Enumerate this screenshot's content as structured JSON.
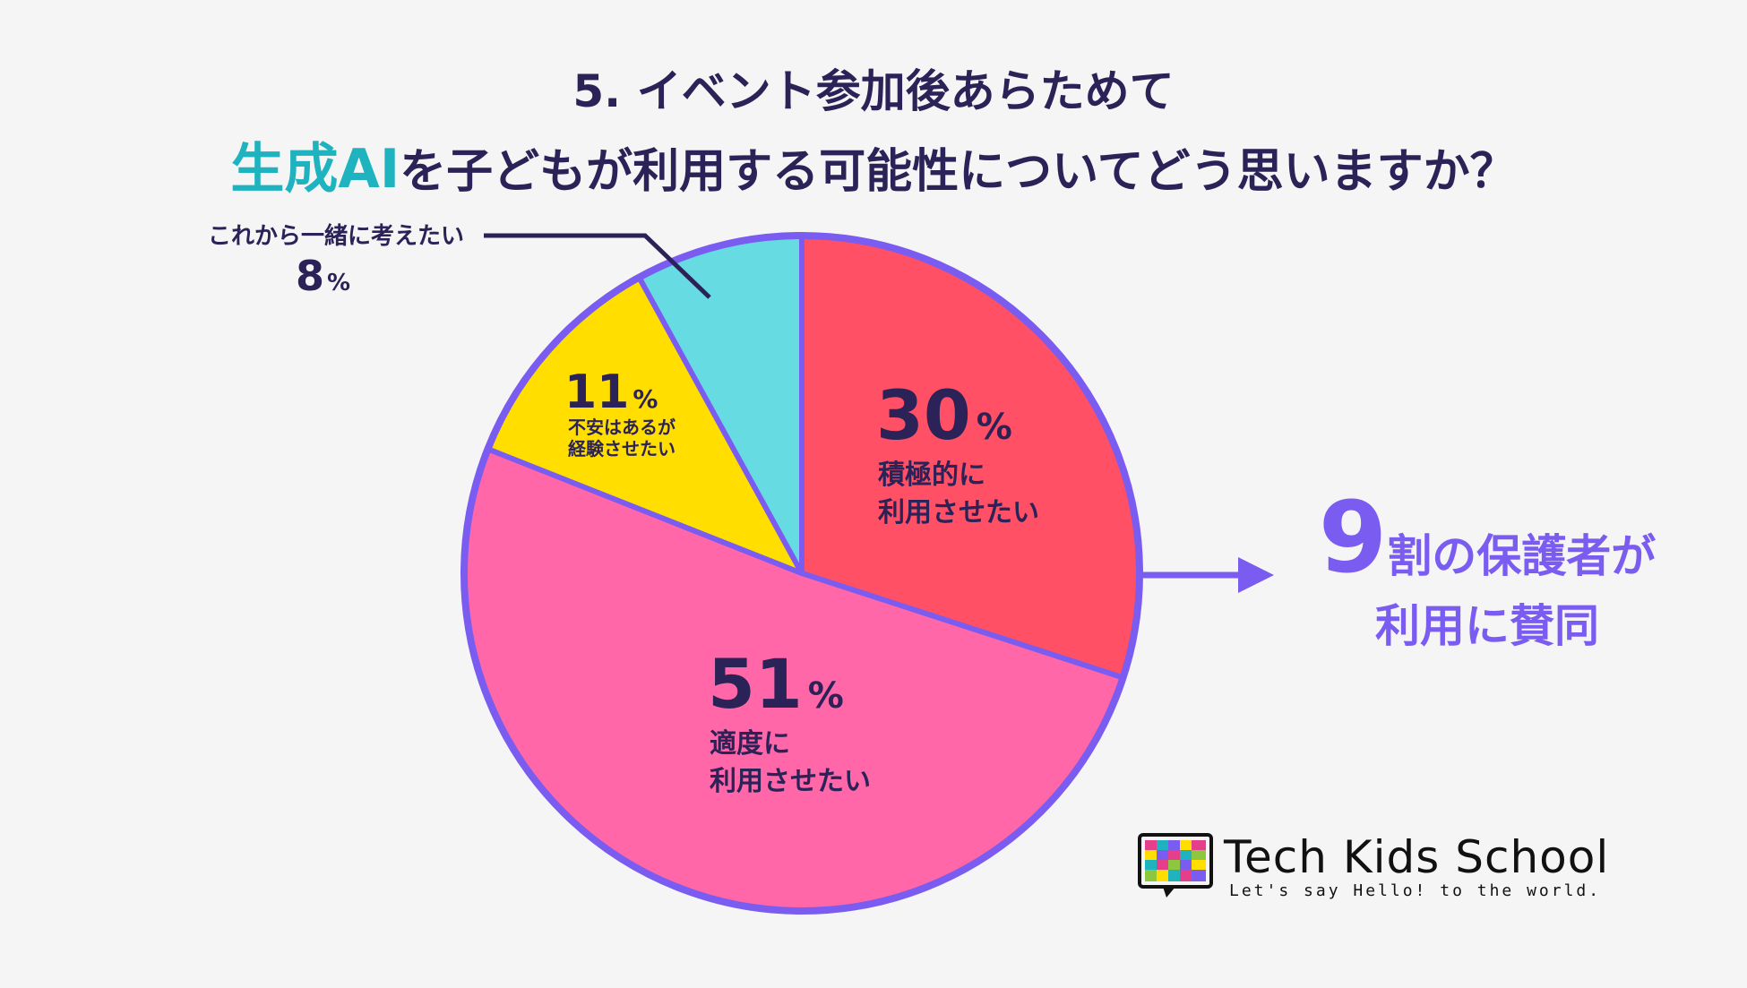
{
  "header": {
    "line1": "5. イベント参加後あらためて",
    "highlight": "生成AI",
    "line2_rest": "を子どもが利用する可能性についてどう思いますか？"
  },
  "chart_data": {
    "type": "pie",
    "slices": [
      {
        "pct": "30",
        "label_lines": [
          "積極的に",
          "利用させたい"
        ],
        "value": 30,
        "color": "#ff5066"
      },
      {
        "pct": "51",
        "label_lines": [
          "適度に",
          "利用させたい"
        ],
        "value": 51,
        "color": "#ff67a8"
      },
      {
        "pct": "11",
        "label_lines": [
          "不安はあるが",
          "経験させたい"
        ],
        "value": 11,
        "color": "#ffde00"
      },
      {
        "pct": "8",
        "label_lines": [
          "これから一緒に考えたい"
        ],
        "value": 8,
        "color": "#67dbe2"
      }
    ],
    "percent_sign": "%",
    "outline_color": "#7b5cf0"
  },
  "callout": {
    "number": "9",
    "text1": "割の保護者が",
    "text2": "利用に賛同"
  },
  "logo": {
    "name": "Tech Kids School",
    "tagline": "Let's say Hello! to the world."
  }
}
